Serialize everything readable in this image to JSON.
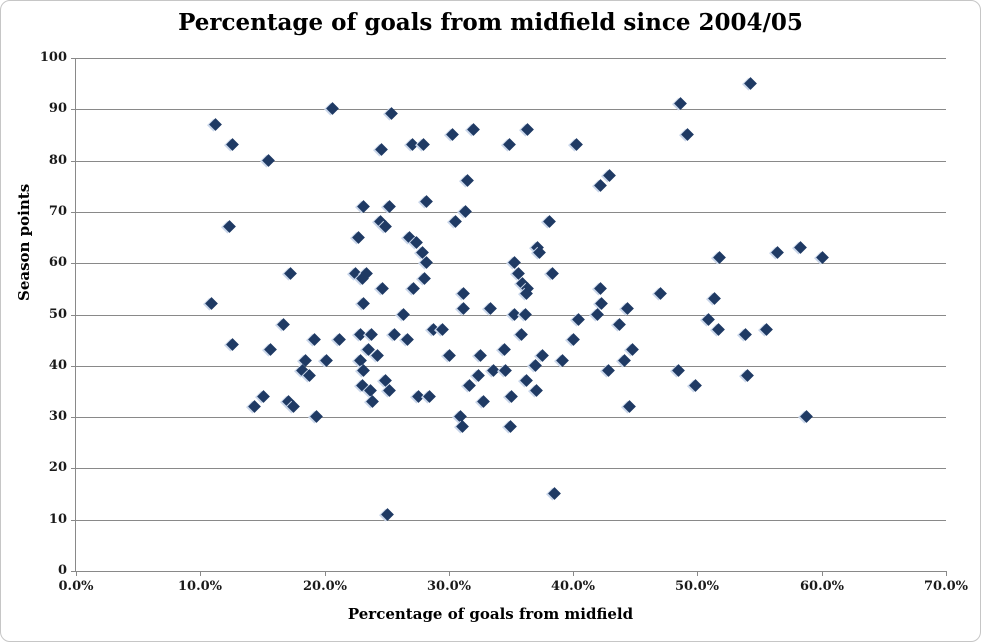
{
  "chart_data": {
    "type": "scatter",
    "title": "Percentage of goals from midfield since 2004/05",
    "xlabel": "Percentage of goals from midfield",
    "ylabel": "Season points",
    "xlim": [
      0,
      70
    ],
    "ylim": [
      0,
      100
    ],
    "x_tick_values": [
      0,
      10,
      20,
      30,
      40,
      50,
      60,
      70
    ],
    "x_tick_labels": [
      "0.0%",
      "10.0%",
      "20.0%",
      "30.0%",
      "40.0%",
      "50.0%",
      "60.0%",
      "70.0%"
    ],
    "y_tick_values": [
      0,
      10,
      20,
      30,
      40,
      50,
      60,
      70,
      80,
      90,
      100
    ],
    "grid": "horizontal-only",
    "legend": "none",
    "marker": {
      "shape": "diamond",
      "color": "#1f3a64"
    },
    "series_note": "each point = [percent of goals from midfield, season points]",
    "points": [
      [
        11.3,
        87
      ],
      [
        12.6,
        83
      ],
      [
        15.5,
        80
      ],
      [
        12.4,
        67
      ],
      [
        17.3,
        58
      ],
      [
        10.9,
        52
      ],
      [
        16.7,
        48
      ],
      [
        12.6,
        44
      ],
      [
        15.7,
        43
      ],
      [
        15.1,
        34
      ],
      [
        14.4,
        32
      ],
      [
        17.1,
        33
      ],
      [
        17.5,
        32
      ],
      [
        20.7,
        90
      ],
      [
        25.4,
        89
      ],
      [
        24.6,
        82
      ],
      [
        30.3,
        85
      ],
      [
        32.0,
        86
      ],
      [
        34.9,
        83
      ],
      [
        27.1,
        83
      ],
      [
        28.0,
        83
      ],
      [
        31.5,
        76
      ],
      [
        28.2,
        72
      ],
      [
        23.2,
        71
      ],
      [
        25.3,
        71
      ],
      [
        31.4,
        70
      ],
      [
        30.6,
        68
      ],
      [
        24.5,
        68
      ],
      [
        24.9,
        67
      ],
      [
        22.8,
        65
      ],
      [
        26.9,
        65
      ],
      [
        27.4,
        64
      ],
      [
        27.9,
        62
      ],
      [
        28.2,
        60
      ],
      [
        28.1,
        57
      ],
      [
        27.2,
        55
      ],
      [
        22.5,
        58
      ],
      [
        23.4,
        58
      ],
      [
        23.1,
        57
      ],
      [
        24.7,
        55
      ],
      [
        23.2,
        52
      ],
      [
        19.2,
        45
      ],
      [
        21.2,
        45
      ],
      [
        22.9,
        46
      ],
      [
        23.8,
        46
      ],
      [
        25.7,
        46
      ],
      [
        26.7,
        45
      ],
      [
        28.8,
        47
      ],
      [
        29.5,
        47
      ],
      [
        18.5,
        41
      ],
      [
        20.2,
        41
      ],
      [
        22.9,
        41
      ],
      [
        23.6,
        43
      ],
      [
        24.3,
        42
      ],
      [
        30.1,
        42
      ],
      [
        32.6,
        42
      ],
      [
        34.5,
        43
      ],
      [
        37.6,
        42
      ],
      [
        23.2,
        39
      ],
      [
        18.3,
        39
      ],
      [
        18.8,
        38
      ],
      [
        24.9,
        37
      ],
      [
        32.4,
        38
      ],
      [
        33.6,
        39
      ],
      [
        34.6,
        39
      ],
      [
        23.1,
        36
      ],
      [
        23.7,
        35
      ],
      [
        25.3,
        35
      ],
      [
        23.9,
        33
      ],
      [
        27.6,
        34
      ],
      [
        28.5,
        34
      ],
      [
        31.7,
        36
      ],
      [
        32.8,
        33
      ],
      [
        19.4,
        30
      ],
      [
        31.0,
        30
      ],
      [
        31.1,
        28
      ],
      [
        25.1,
        11
      ],
      [
        35.1,
        34
      ],
      [
        35.0,
        28
      ],
      [
        48.7,
        91
      ],
      [
        36.4,
        86
      ],
      [
        49.2,
        85
      ],
      [
        40.3,
        83
      ],
      [
        43.0,
        77
      ],
      [
        42.2,
        75
      ],
      [
        38.1,
        68
      ],
      [
        37.2,
        63
      ],
      [
        37.3,
        62
      ],
      [
        35.3,
        60
      ],
      [
        51.8,
        61
      ],
      [
        35.6,
        58
      ],
      [
        38.4,
        58
      ],
      [
        36.0,
        56
      ],
      [
        36.4,
        55
      ],
      [
        36.3,
        54
      ],
      [
        42.2,
        55
      ],
      [
        42.3,
        52
      ],
      [
        47.1,
        54
      ],
      [
        51.4,
        53
      ],
      [
        31.2,
        54
      ],
      [
        31.2,
        51
      ],
      [
        33.4,
        51
      ],
      [
        26.4,
        50
      ],
      [
        35.3,
        50
      ],
      [
        36.2,
        50
      ],
      [
        40.5,
        49
      ],
      [
        42.0,
        50
      ],
      [
        44.4,
        51
      ],
      [
        43.8,
        48
      ],
      [
        50.9,
        49
      ],
      [
        51.7,
        47
      ],
      [
        35.9,
        46
      ],
      [
        40.1,
        45
      ],
      [
        39.2,
        41
      ],
      [
        37.0,
        40
      ],
      [
        44.8,
        43
      ],
      [
        44.2,
        41
      ],
      [
        42.9,
        39
      ],
      [
        48.5,
        39
      ],
      [
        36.3,
        37
      ],
      [
        37.1,
        35
      ],
      [
        49.9,
        36
      ],
      [
        44.6,
        32
      ],
      [
        38.5,
        15
      ],
      [
        54.3,
        95
      ],
      [
        56.5,
        62
      ],
      [
        58.3,
        63
      ],
      [
        60.1,
        61
      ],
      [
        53.9,
        46
      ],
      [
        55.6,
        47
      ],
      [
        54.1,
        38
      ],
      [
        58.8,
        30
      ]
    ]
  }
}
